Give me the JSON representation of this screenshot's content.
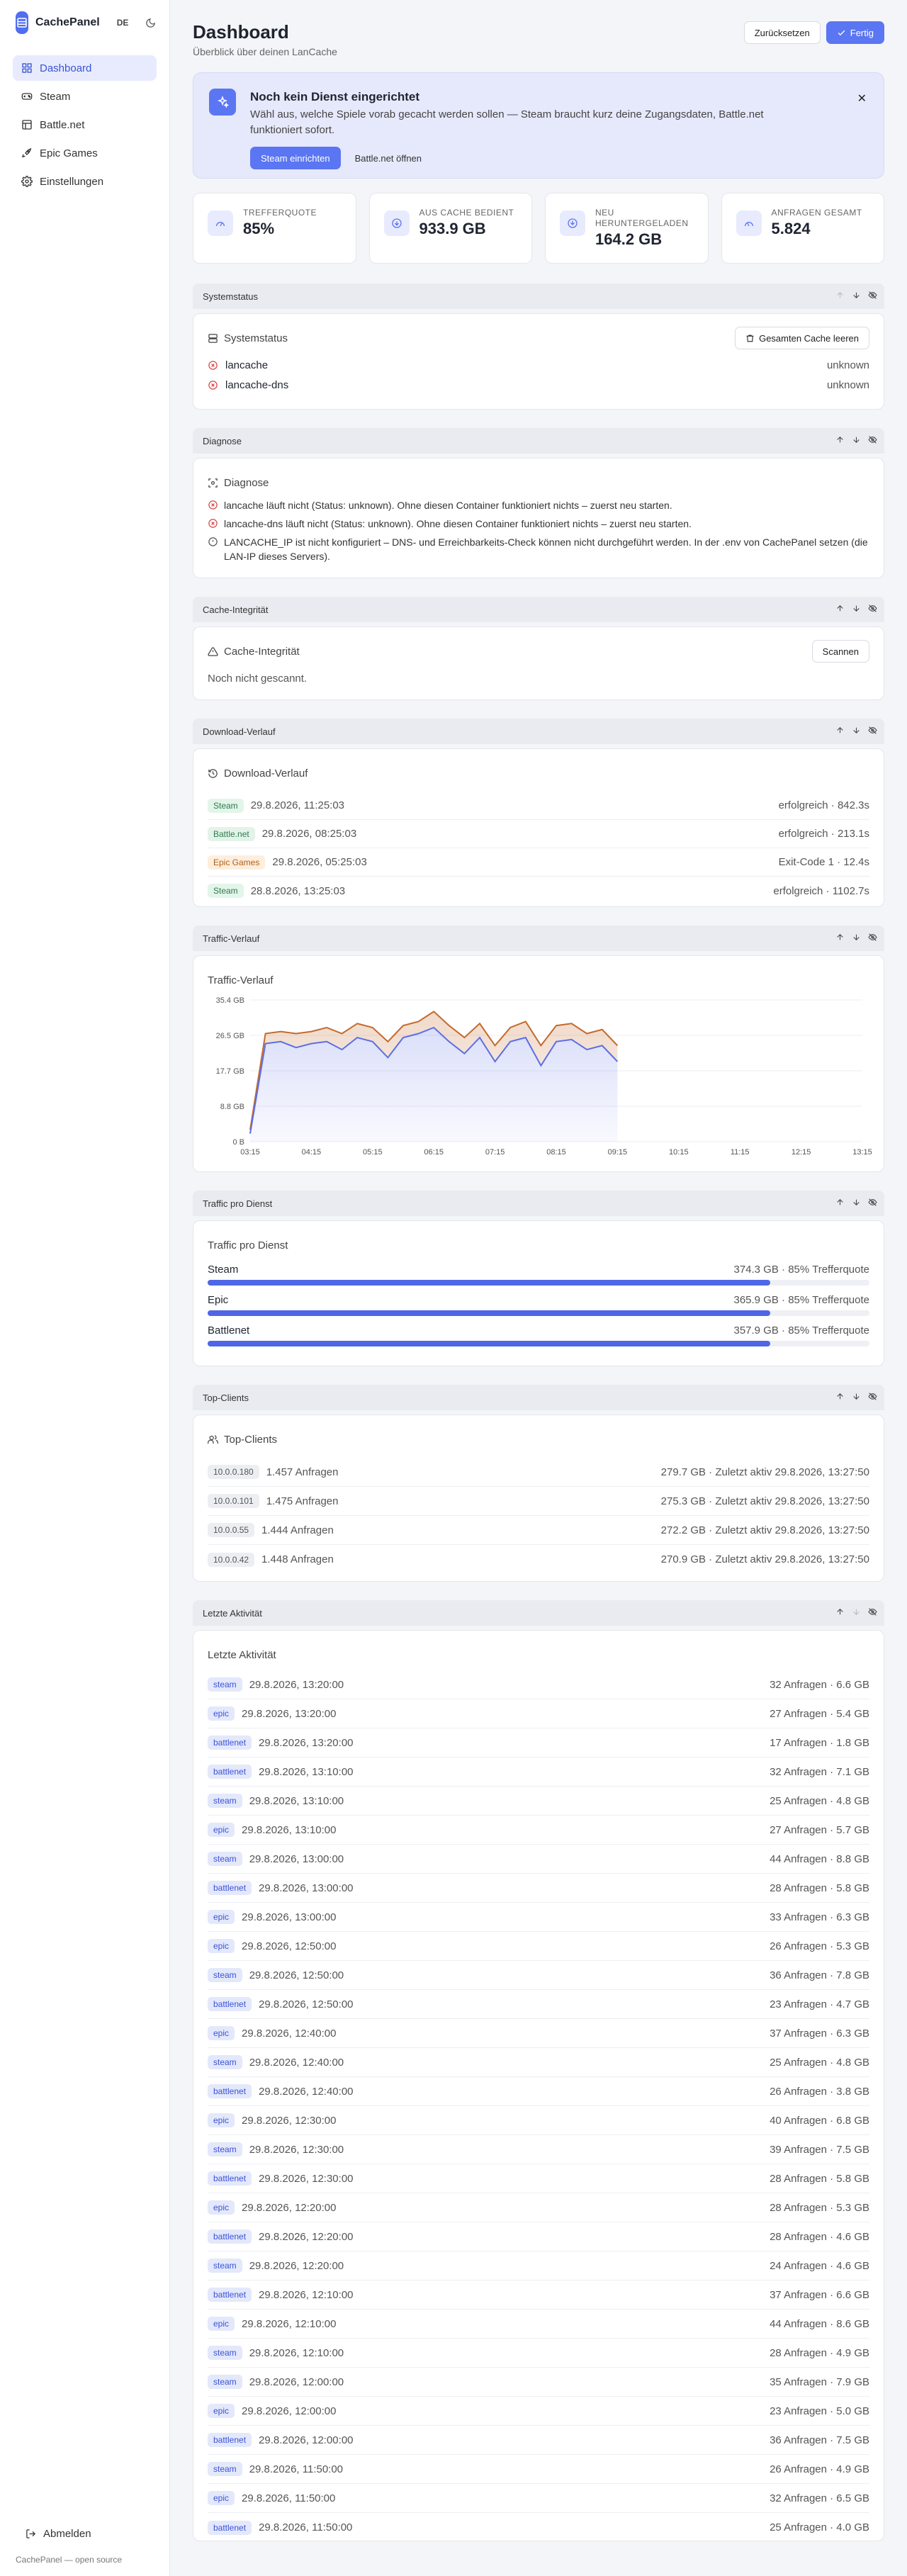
{
  "brand": {
    "name": "CachePanel",
    "lang": "DE"
  },
  "nav": [
    {
      "label": "Dashboard",
      "icon": "dashboard-icon",
      "active": true
    },
    {
      "label": "Steam",
      "icon": "gamepad-icon",
      "active": false
    },
    {
      "label": "Battle.net",
      "icon": "grid-icon",
      "active": false
    },
    {
      "label": "Epic Games",
      "icon": "rocket-icon",
      "active": false
    },
    {
      "label": "Einstellungen",
      "icon": "gear-icon",
      "active": false
    }
  ],
  "sidebar_footer": {
    "logout": "Abmelden",
    "credit": "CachePanel — open source"
  },
  "header": {
    "title": "Dashboard",
    "subtitle": "Überblick über deinen LanCache",
    "reset": "Zurücksetzen",
    "done": "Fertig"
  },
  "banner": {
    "title": "Noch kein Dienst eingerichtet",
    "text": "Wähl aus, welche Spiele vorab gecacht werden sollen — Steam braucht kurz deine Zugangsdaten, Battle.net funktioniert sofort.",
    "primary": "Steam einrichten",
    "secondary": "Battle.net öffnen"
  },
  "stats": [
    {
      "label": "Trefferquote",
      "value": "85%"
    },
    {
      "label": "Aus Cache bedient",
      "value": "933.9 GB"
    },
    {
      "label": "Neu heruntergeladen",
      "value": "164.2 GB"
    },
    {
      "label": "Anfragen gesamt",
      "value": "5.824"
    }
  ],
  "system": {
    "section": "Systemstatus",
    "title": "Systemstatus",
    "clear": "Gesamten Cache leeren",
    "items": [
      {
        "name": "lancache",
        "status": "unknown"
      },
      {
        "name": "lancache-dns",
        "status": "unknown"
      }
    ]
  },
  "diagnose": {
    "section": "Diagnose",
    "title": "Diagnose",
    "items": [
      {
        "type": "error",
        "text": "lancache läuft nicht (Status: unknown). Ohne diesen Container funktioniert nichts – zuerst neu starten."
      },
      {
        "type": "error",
        "text": "lancache-dns läuft nicht (Status: unknown). Ohne diesen Container funktioniert nichts – zuerst neu starten."
      },
      {
        "type": "info",
        "text": "LANCACHE_IP ist nicht konfiguriert – DNS- und Erreichbarkeits-Check können nicht durchgeführt werden. In der .env von CachePanel setzen (die LAN-IP dieses Servers)."
      }
    ]
  },
  "integrity": {
    "section": "Cache-Integrität",
    "title": "Cache-Integrität",
    "scan": "Scannen",
    "text": "Noch nicht gescannt."
  },
  "downloads": {
    "section": "Download-Verlauf",
    "title": "Download-Verlauf",
    "items": [
      {
        "service": "Steam",
        "kind": "steam",
        "time": "29.8.2026, 11:25:03",
        "result": "erfolgreich · 842.3s"
      },
      {
        "service": "Battle.net",
        "kind": "battle",
        "time": "29.8.2026, 08:25:03",
        "result": "erfolgreich · 213.1s"
      },
      {
        "service": "Epic Games",
        "kind": "epic",
        "time": "29.8.2026, 05:25:03",
        "result": "Exit-Code 1 · 12.4s"
      },
      {
        "service": "Steam",
        "kind": "steam",
        "time": "28.8.2026, 13:25:03",
        "result": "erfolgreich · 1102.7s"
      }
    ]
  },
  "traffic": {
    "section": "Traffic-Verlauf",
    "title": "Traffic-Verlauf",
    "colors": {
      "served": "#5b6ee6",
      "downloaded": "#c46a2c"
    }
  },
  "chart_data": {
    "type": "area",
    "title": "Traffic-Verlauf",
    "x": [
      "03:15",
      "03:30",
      "03:45",
      "04:00",
      "04:15",
      "04:30",
      "04:45",
      "05:00",
      "05:15",
      "05:30",
      "05:45",
      "06:00",
      "06:15",
      "06:30",
      "06:45",
      "07:00",
      "07:15",
      "07:30",
      "07:45",
      "08:00",
      "08:15",
      "08:30",
      "08:45",
      "09:00",
      "09:15"
    ],
    "xticks": [
      "03:15",
      "04:15",
      "05:15",
      "06:15",
      "07:15",
      "08:15",
      "09:15",
      "10:15",
      "11:15",
      "12:15",
      "13:15"
    ],
    "yticks": [
      "0 B",
      "8.8 GB",
      "17.7 GB",
      "26.5 GB",
      "35.4 GB"
    ],
    "ylim": [
      0,
      35.4
    ],
    "series": [
      {
        "values": [
          2,
          24.5,
          25,
          23.5,
          24.5,
          25,
          23,
          26,
          25,
          21,
          26,
          27,
          28.5,
          25,
          22,
          26,
          20,
          25,
          26,
          19,
          25,
          25.5,
          23,
          24,
          20
        ]
      },
      {
        "values": [
          3,
          27,
          27.5,
          27,
          27.5,
          28.5,
          27,
          29.5,
          28.5,
          25,
          29,
          30,
          32.5,
          29,
          26,
          29.5,
          24,
          28.5,
          30,
          24,
          29,
          29.5,
          27,
          28,
          24
        ]
      }
    ]
  },
  "traffic_by_service": {
    "section": "Traffic pro Dienst",
    "title": "Traffic pro Dienst",
    "items": [
      {
        "name": "Steam",
        "detail": "374.3 GB · 85% Trefferquote",
        "fill": 0.85
      },
      {
        "name": "Epic",
        "detail": "365.9 GB · 85% Trefferquote",
        "fill": 0.85
      },
      {
        "name": "Battlenet",
        "detail": "357.9 GB · 85% Trefferquote",
        "fill": 0.85
      }
    ]
  },
  "clients": {
    "section": "Top-Clients",
    "title": "Top-Clients",
    "items": [
      {
        "ip": "10.0.0.180",
        "requests": "1.457 Anfragen",
        "detail": "279.7 GB · Zuletzt aktiv 29.8.2026, 13:27:50"
      },
      {
        "ip": "10.0.0.101",
        "requests": "1.475 Anfragen",
        "detail": "275.3 GB · Zuletzt aktiv 29.8.2026, 13:27:50"
      },
      {
        "ip": "10.0.0.55",
        "requests": "1.444 Anfragen",
        "detail": "272.2 GB · Zuletzt aktiv 29.8.2026, 13:27:50"
      },
      {
        "ip": "10.0.0.42",
        "requests": "1.448 Anfragen",
        "detail": "270.9 GB · Zuletzt aktiv 29.8.2026, 13:27:50"
      }
    ]
  },
  "activity": {
    "section": "Letzte Aktivität",
    "title": "Letzte Aktivität",
    "items": [
      {
        "service": "steam",
        "time": "29.8.2026, 13:20:00",
        "detail": "32 Anfragen · 6.6 GB"
      },
      {
        "service": "epic",
        "time": "29.8.2026, 13:20:00",
        "detail": "27 Anfragen · 5.4 GB"
      },
      {
        "service": "battlenet",
        "time": "29.8.2026, 13:20:00",
        "detail": "17 Anfragen · 1.8 GB"
      },
      {
        "service": "battlenet",
        "time": "29.8.2026, 13:10:00",
        "detail": "32 Anfragen · 7.1 GB"
      },
      {
        "service": "steam",
        "time": "29.8.2026, 13:10:00",
        "detail": "25 Anfragen · 4.8 GB"
      },
      {
        "service": "epic",
        "time": "29.8.2026, 13:10:00",
        "detail": "27 Anfragen · 5.7 GB"
      },
      {
        "service": "steam",
        "time": "29.8.2026, 13:00:00",
        "detail": "44 Anfragen · 8.8 GB"
      },
      {
        "service": "battlenet",
        "time": "29.8.2026, 13:00:00",
        "detail": "28 Anfragen · 5.8 GB"
      },
      {
        "service": "epic",
        "time": "29.8.2026, 13:00:00",
        "detail": "33 Anfragen · 6.3 GB"
      },
      {
        "service": "epic",
        "time": "29.8.2026, 12:50:00",
        "detail": "26 Anfragen · 5.3 GB"
      },
      {
        "service": "steam",
        "time": "29.8.2026, 12:50:00",
        "detail": "36 Anfragen · 7.8 GB"
      },
      {
        "service": "battlenet",
        "time": "29.8.2026, 12:50:00",
        "detail": "23 Anfragen · 4.7 GB"
      },
      {
        "service": "epic",
        "time": "29.8.2026, 12:40:00",
        "detail": "37 Anfragen · 6.3 GB"
      },
      {
        "service": "steam",
        "time": "29.8.2026, 12:40:00",
        "detail": "25 Anfragen · 4.8 GB"
      },
      {
        "service": "battlenet",
        "time": "29.8.2026, 12:40:00",
        "detail": "26 Anfragen · 3.8 GB"
      },
      {
        "service": "epic",
        "time": "29.8.2026, 12:30:00",
        "detail": "40 Anfragen · 6.8 GB"
      },
      {
        "service": "steam",
        "time": "29.8.2026, 12:30:00",
        "detail": "39 Anfragen · 7.5 GB"
      },
      {
        "service": "battlenet",
        "time": "29.8.2026, 12:30:00",
        "detail": "28 Anfragen · 5.8 GB"
      },
      {
        "service": "epic",
        "time": "29.8.2026, 12:20:00",
        "detail": "28 Anfragen · 5.3 GB"
      },
      {
        "service": "battlenet",
        "time": "29.8.2026, 12:20:00",
        "detail": "28 Anfragen · 4.6 GB"
      },
      {
        "service": "steam",
        "time": "29.8.2026, 12:20:00",
        "detail": "24 Anfragen · 4.6 GB"
      },
      {
        "service": "battlenet",
        "time": "29.8.2026, 12:10:00",
        "detail": "37 Anfragen · 6.6 GB"
      },
      {
        "service": "epic",
        "time": "29.8.2026, 12:10:00",
        "detail": "44 Anfragen · 8.6 GB"
      },
      {
        "service": "steam",
        "time": "29.8.2026, 12:10:00",
        "detail": "28 Anfragen · 4.9 GB"
      },
      {
        "service": "steam",
        "time": "29.8.2026, 12:00:00",
        "detail": "35 Anfragen · 7.9 GB"
      },
      {
        "service": "epic",
        "time": "29.8.2026, 12:00:00",
        "detail": "23 Anfragen · 5.0 GB"
      },
      {
        "service": "battlenet",
        "time": "29.8.2026, 12:00:00",
        "detail": "36 Anfragen · 7.5 GB"
      },
      {
        "service": "steam",
        "time": "29.8.2026, 11:50:00",
        "detail": "26 Anfragen · 4.9 GB"
      },
      {
        "service": "epic",
        "time": "29.8.2026, 11:50:00",
        "detail": "32 Anfragen · 6.5 GB"
      },
      {
        "service": "battlenet",
        "time": "29.8.2026, 11:50:00",
        "detail": "25 Anfragen · 4.0 GB"
      }
    ]
  }
}
